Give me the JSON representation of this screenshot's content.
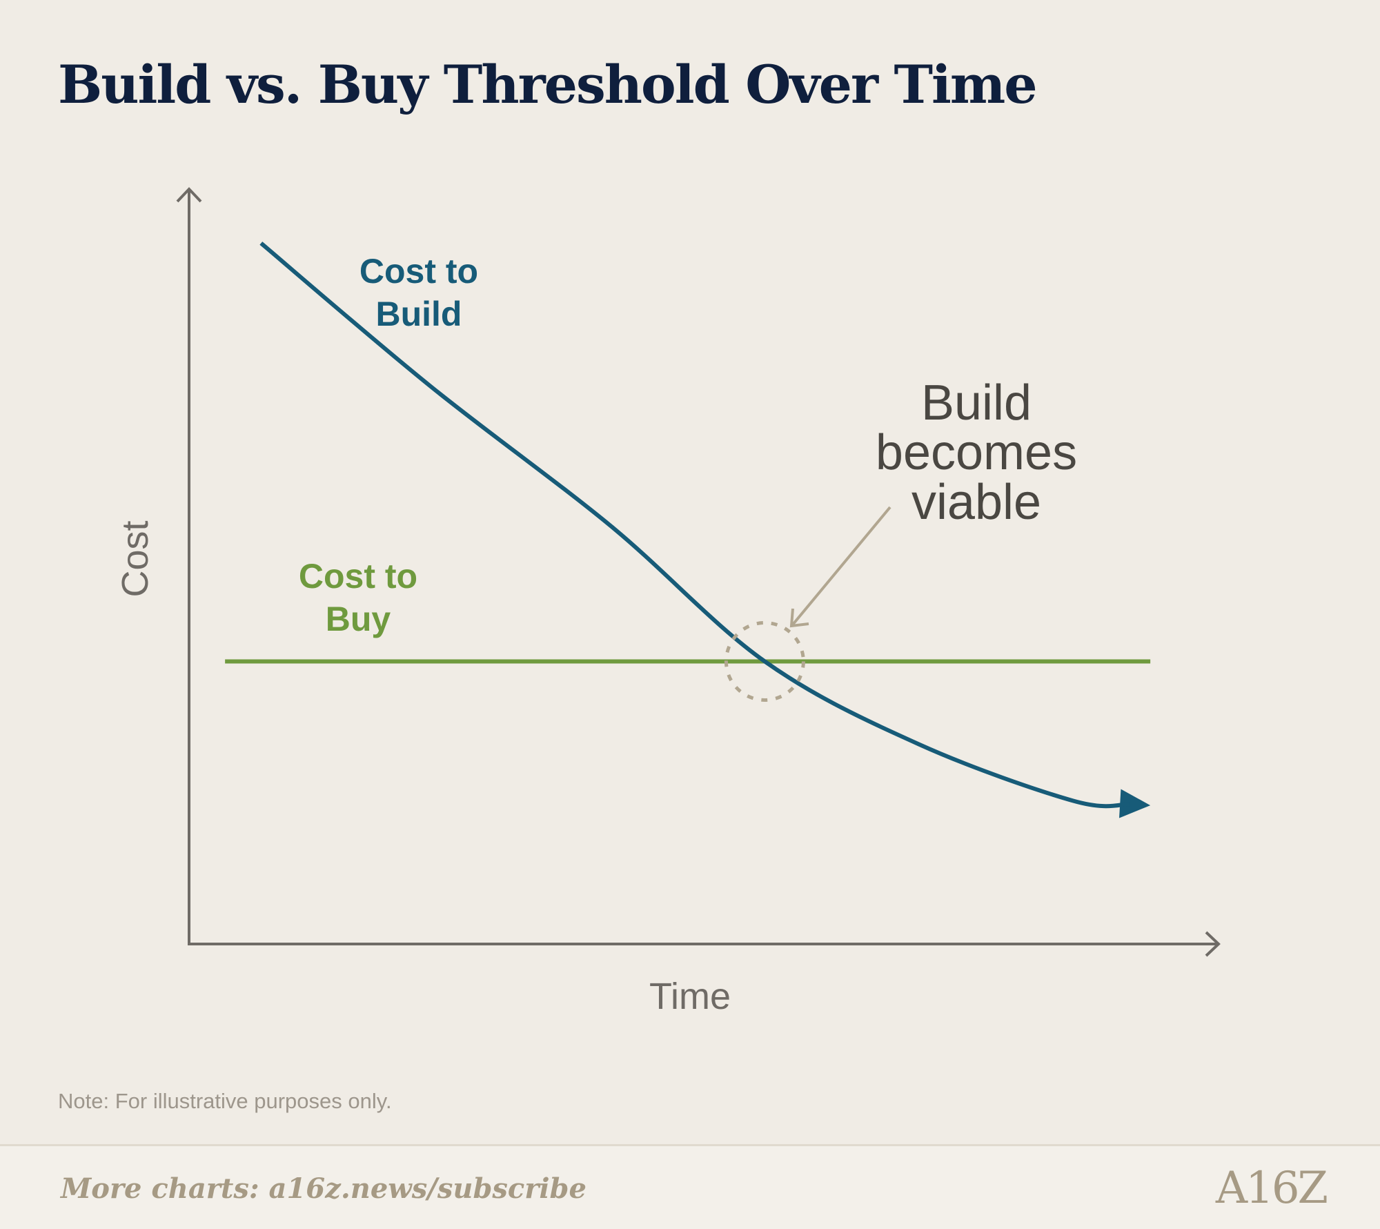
{
  "title": "Build vs. Buy Threshold Over Time",
  "note": "Note: For illustrative purposes only.",
  "footer": {
    "link_text": "More charts: a16z.news/subscribe",
    "logo_text": "A16Z"
  },
  "colors": {
    "build": "#175b78",
    "buy": "#6f9a3e",
    "axis": "#6f6b66",
    "annotation_text": "#4a4742",
    "annotation_arrow": "#b1a690",
    "title": "#0f1f3d"
  },
  "chart_data": {
    "type": "line",
    "title": "Build vs. Buy Threshold Over Time",
    "xlabel": "Time",
    "ylabel": "Cost",
    "xlim": [
      0,
      10
    ],
    "ylim": [
      0,
      10
    ],
    "grid": false,
    "axis_ticks": false,
    "series": [
      {
        "name": "Cost to Build",
        "label_lines": [
          "Cost to",
          "Build"
        ],
        "color": "#175b78",
        "arrow_end": true,
        "points": [
          [
            0.7,
            9.3
          ],
          [
            2.35,
            7.4
          ],
          [
            4.1,
            5.55
          ],
          [
            5.6,
            3.75
          ],
          [
            7.1,
            2.65
          ],
          [
            8.6,
            1.9
          ],
          [
            9.35,
            1.84
          ]
        ]
      },
      {
        "name": "Cost to Buy",
        "label_lines": [
          "Cost to",
          "Buy"
        ],
        "color": "#6f9a3e",
        "arrow_end": false,
        "points": [
          [
            0.35,
            3.75
          ],
          [
            9.35,
            3.75
          ]
        ]
      }
    ],
    "annotations": [
      {
        "text_lines": [
          "Build",
          "becomes",
          "viable"
        ],
        "target": [
          5.6,
          3.75
        ],
        "marker": "dashed-circle"
      }
    ]
  }
}
